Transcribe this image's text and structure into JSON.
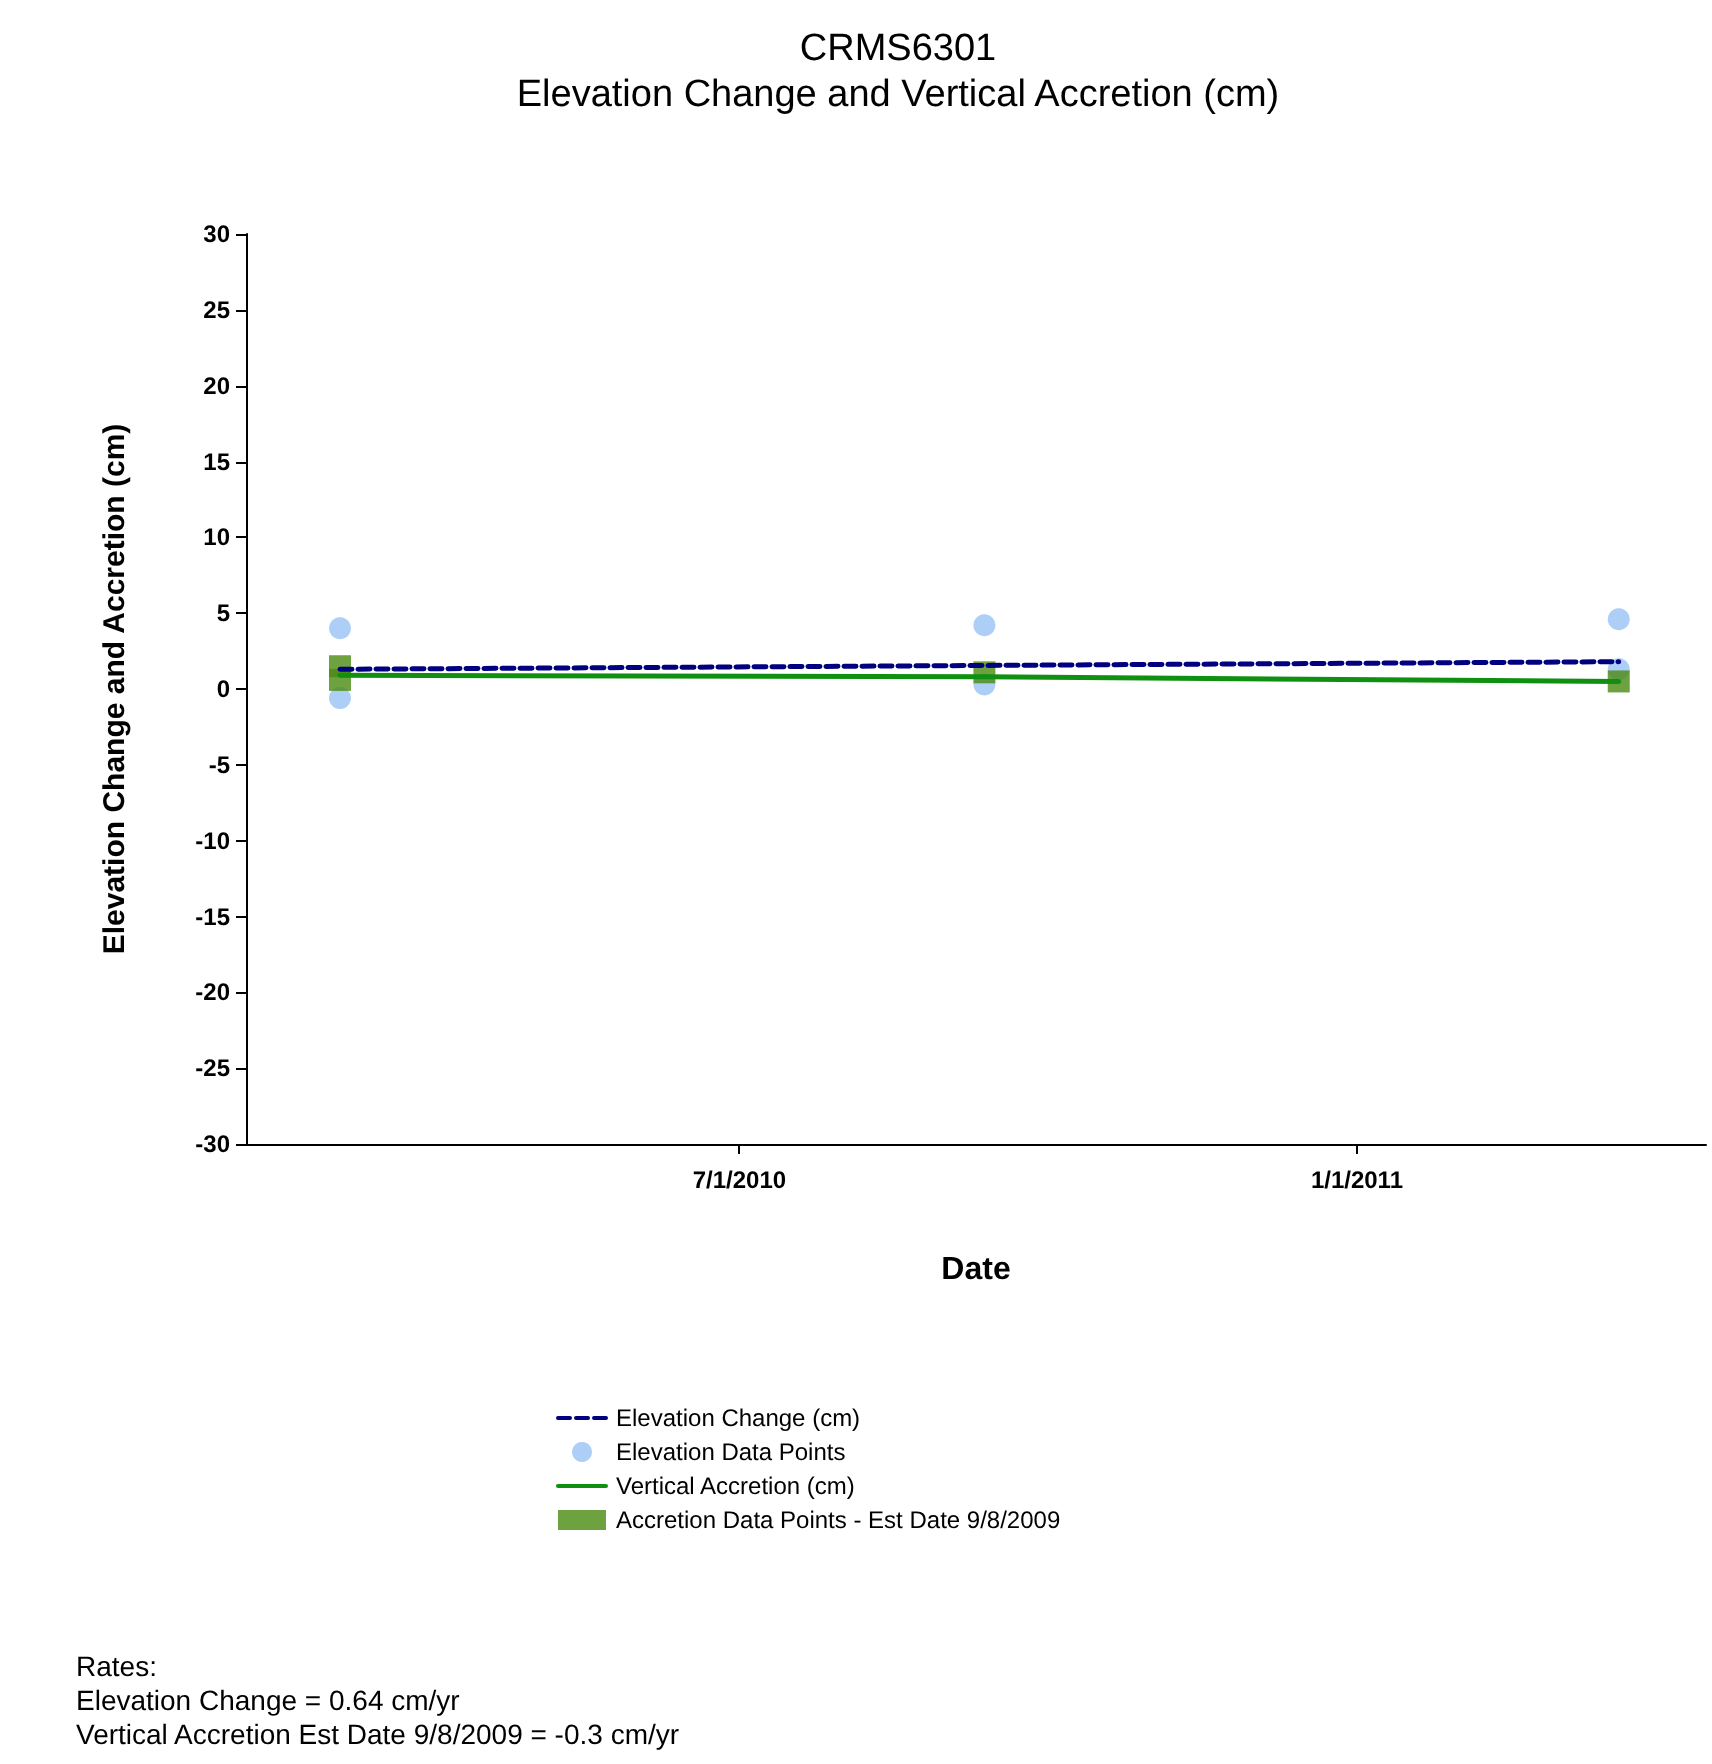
{
  "chart_data": {
    "type": "line",
    "title": "CRMS6301",
    "subtitle": "Elevation Change and Vertical Accretion (cm)",
    "xlabel": "Date",
    "ylabel": "Elevation Change and Accretion (cm)",
    "xlim": [
      "2010-02-04",
      "2011-04-15"
    ],
    "xticks": [
      {
        "value": "2010-07-01",
        "label": "7/1/2010"
      },
      {
        "value": "2011-01-01",
        "label": "1/1/2011"
      }
    ],
    "ylim": [
      -30,
      30
    ],
    "yticks": [
      -30,
      -25,
      -20,
      -15,
      -10,
      -5,
      0,
      5,
      10,
      15,
      20,
      25,
      30
    ],
    "grid": false,
    "legend": "bottom",
    "series": [
      {
        "name": "Elevation Change (cm)",
        "color": "#000080",
        "line_style": "dashed",
        "marker": "none",
        "x": [
          "2010-03-04",
          "2011-03-20"
        ],
        "values": [
          1.3,
          1.8
        ]
      },
      {
        "name": "Elevation Data Points",
        "type": "scatter",
        "color": "#99c2f5",
        "marker": "circle",
        "x": [
          "2010-03-04",
          "2010-03-04",
          "2010-09-12",
          "2010-09-12",
          "2011-03-20",
          "2011-03-20"
        ],
        "values": [
          4.0,
          -0.6,
          4.2,
          0.3,
          4.6,
          1.3
        ]
      },
      {
        "name": "Vertical Accretion (cm)",
        "color": "#109010",
        "line_style": "solid",
        "marker": "none",
        "x": [
          "2010-03-04",
          "2010-09-12",
          "2011-03-20"
        ],
        "values": [
          0.9,
          0.8,
          0.5
        ]
      },
      {
        "name": "Accretion Data Points - Est Date 9/8/2009",
        "type": "scatter",
        "color": "#4a8a10",
        "marker": "square",
        "x": [
          "2010-03-04",
          "2010-03-04",
          "2010-09-12",
          "2011-03-20"
        ],
        "values": [
          1.5,
          0.6,
          1.1,
          0.5
        ]
      }
    ],
    "annotations": [
      "Rates:",
      "Elevation Change = 0.64 cm/yr",
      "Vertical Accretion Est Date 9/8/2009 = -0.3 cm/yr"
    ]
  }
}
